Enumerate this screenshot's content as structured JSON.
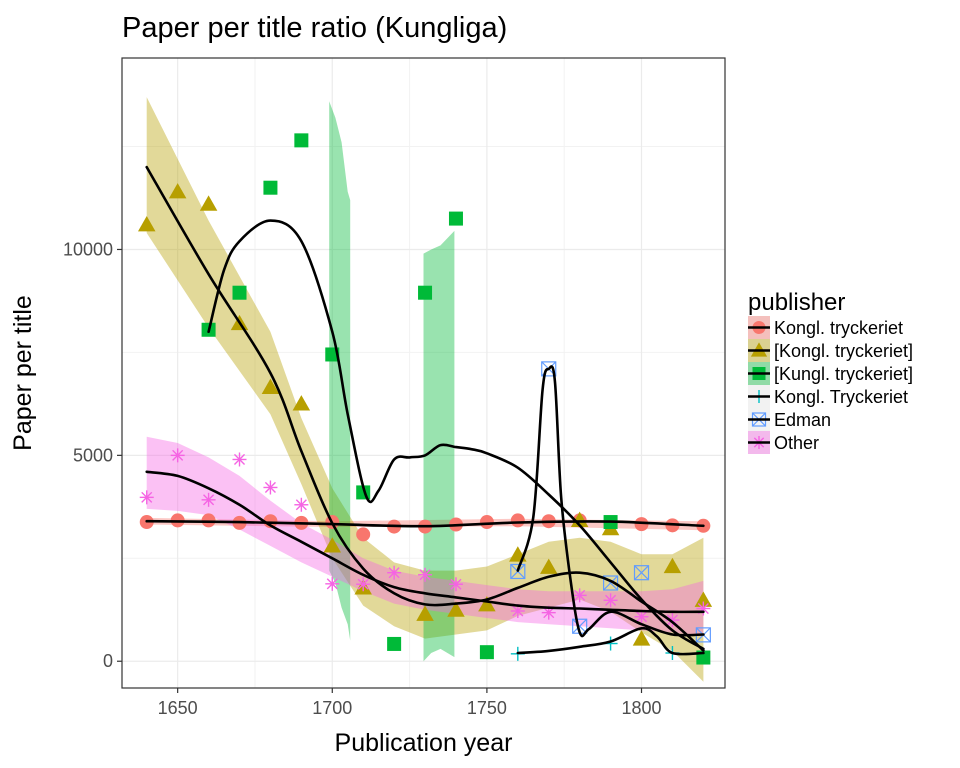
{
  "chart_data": {
    "type": "scatter",
    "title": "Paper per title ratio (Kungliga)",
    "xlabel": "Publication year",
    "ylabel": "Paper per title",
    "xlim": [
      1632,
      1827
    ],
    "ylim": [
      -650,
      14650
    ],
    "x_ticks": [
      1650,
      1700,
      1750,
      1800
    ],
    "x_tick_labels": [
      "1650",
      "1700",
      "1750",
      "1800"
    ],
    "y_ticks": [
      0,
      5000,
      10000
    ],
    "y_tick_labels": [
      "0",
      "5000",
      "10000"
    ],
    "grid": true,
    "legend": {
      "title": "publisher",
      "position": "right"
    },
    "series": [
      {
        "name": "Kongl. tryckeriet",
        "color": "#F8766D",
        "marker": "circle",
        "points": [
          [
            1640,
            3380
          ],
          [
            1650,
            3420
          ],
          [
            1660,
            3420
          ],
          [
            1670,
            3360
          ],
          [
            1680,
            3400
          ],
          [
            1690,
            3360
          ],
          [
            1700,
            3380
          ],
          [
            1710,
            3080
          ],
          [
            1720,
            3270
          ],
          [
            1730,
            3270
          ],
          [
            1740,
            3320
          ],
          [
            1750,
            3380
          ],
          [
            1760,
            3420
          ],
          [
            1770,
            3400
          ],
          [
            1780,
            3420
          ],
          [
            1790,
            3340
          ],
          [
            1800,
            3330
          ],
          [
            1810,
            3300
          ],
          [
            1820,
            3290
          ]
        ],
        "smooth": [
          [
            1640,
            3400
          ],
          [
            1670,
            3380
          ],
          [
            1700,
            3330
          ],
          [
            1730,
            3280
          ],
          [
            1760,
            3370
          ],
          [
            1790,
            3390
          ],
          [
            1820,
            3290
          ]
        ],
        "band": [
          [
            1640,
            3320,
            3480
          ],
          [
            1700,
            3260,
            3400
          ],
          [
            1760,
            3280,
            3460
          ],
          [
            1820,
            3180,
            3400
          ]
        ]
      },
      {
        "name": "[Kongl. tryckeriet]",
        "color": "#B79F00",
        "marker": "triangle",
        "points": [
          [
            1640,
            10600
          ],
          [
            1650,
            11400
          ],
          [
            1660,
            11100
          ],
          [
            1670,
            8200
          ],
          [
            1680,
            6650
          ],
          [
            1690,
            6250
          ],
          [
            1700,
            2800
          ],
          [
            1710,
            1780
          ],
          [
            1730,
            1140
          ],
          [
            1740,
            1240
          ],
          [
            1750,
            1370
          ],
          [
            1760,
            2580
          ],
          [
            1770,
            2280
          ],
          [
            1780,
            3420
          ],
          [
            1790,
            3220
          ],
          [
            1800,
            540
          ],
          [
            1810,
            2300
          ],
          [
            1820,
            1480
          ]
        ],
        "smooth": [
          [
            1640,
            12000
          ],
          [
            1660,
            9400
          ],
          [
            1680,
            7000
          ],
          [
            1690,
            5100
          ],
          [
            1700,
            3350
          ],
          [
            1710,
            2250
          ],
          [
            1720,
            1650
          ],
          [
            1730,
            1380
          ],
          [
            1740,
            1400
          ],
          [
            1750,
            1500
          ],
          [
            1760,
            1780
          ],
          [
            1770,
            2050
          ],
          [
            1780,
            2150
          ],
          [
            1790,
            1950
          ],
          [
            1800,
            1450
          ],
          [
            1810,
            950
          ],
          [
            1820,
            260
          ]
        ],
        "band": [
          [
            1640,
            10400,
            13700
          ],
          [
            1660,
            8100,
            10700
          ],
          [
            1680,
            6000,
            8000
          ],
          [
            1690,
            4300,
            5900
          ],
          [
            1700,
            2500,
            4200
          ],
          [
            1710,
            1350,
            3000
          ],
          [
            1720,
            850,
            2400
          ],
          [
            1730,
            550,
            2200
          ],
          [
            1740,
            650,
            2200
          ],
          [
            1750,
            750,
            2300
          ],
          [
            1760,
            1100,
            2600
          ],
          [
            1770,
            1300,
            2900
          ],
          [
            1780,
            1500,
            3000
          ],
          [
            1790,
            1200,
            2900
          ],
          [
            1800,
            700,
            2600
          ],
          [
            1810,
            250,
            2600
          ],
          [
            1820,
            -500,
            3000
          ]
        ]
      },
      {
        "name": "[Kungl. tryckeriet]",
        "color": "#00BA38",
        "marker": "square",
        "points": [
          [
            1660,
            8050
          ],
          [
            1670,
            8950
          ],
          [
            1680,
            11500
          ],
          [
            1690,
            12650
          ],
          [
            1700,
            7450
          ],
          [
            1710,
            4100
          ],
          [
            1720,
            420
          ],
          [
            1730,
            8950
          ],
          [
            1740,
            10750
          ],
          [
            1750,
            220
          ],
          [
            1790,
            3380
          ],
          [
            1820,
            90
          ]
        ],
        "smooth": [
          [
            1660,
            8000
          ],
          [
            1665,
            9500
          ],
          [
            1670,
            10200
          ],
          [
            1680,
            10700
          ],
          [
            1690,
            10200
          ],
          [
            1700,
            8000
          ],
          [
            1705,
            6000
          ],
          [
            1711,
            4000
          ],
          [
            1715,
            4150
          ],
          [
            1720,
            4900
          ],
          [
            1725,
            4950
          ],
          [
            1730,
            5000
          ],
          [
            1735,
            5250
          ],
          [
            1740,
            5200
          ],
          [
            1745,
            5150
          ],
          [
            1750,
            5050
          ],
          [
            1760,
            4700
          ],
          [
            1770,
            4050
          ],
          [
            1780,
            3300
          ],
          [
            1790,
            2400
          ],
          [
            1800,
            1500
          ],
          [
            1810,
            750
          ],
          [
            1820,
            300
          ]
        ],
        "bands": [
          [
            [
              1699,
              13600,
              2200
            ],
            [
              1701,
              13200,
              1900
            ],
            [
              1703,
              12600,
              1300
            ],
            [
              1705,
              11400,
              900
            ],
            [
              1705.8,
              11200,
              500
            ]
          ],
          [
            [
              1729.5,
              9900,
              0
            ],
            [
              1732,
              10000,
              200
            ],
            [
              1735,
              10100,
              300
            ],
            [
              1739.5,
              10450,
              100
            ]
          ]
        ]
      },
      {
        "name": "Kongl. Tryckeriet",
        "color": "#00BFC4",
        "marker": "plus",
        "points": [
          [
            1760,
            180
          ],
          [
            1790,
            430
          ],
          [
            1810,
            200
          ]
        ],
        "smooth": [
          [
            1760,
            200
          ],
          [
            1770,
            250
          ],
          [
            1780,
            350
          ],
          [
            1790,
            480
          ],
          [
            1800,
            800
          ],
          [
            1805,
            600
          ],
          [
            1810,
            200
          ],
          [
            1820,
            200
          ]
        ]
      },
      {
        "name": "Edman",
        "color": "#619CFF",
        "marker": "boxcross",
        "points": [
          [
            1760,
            2180
          ],
          [
            1770,
            7100
          ],
          [
            1780,
            850
          ],
          [
            1790,
            1900
          ],
          [
            1800,
            2150
          ],
          [
            1820,
            640
          ]
        ],
        "smooth": [
          [
            1760,
            2200
          ],
          [
            1765,
            3500
          ],
          [
            1768,
            6600
          ],
          [
            1770,
            7100
          ],
          [
            1772,
            6800
          ],
          [
            1774,
            4000
          ],
          [
            1777,
            2000
          ],
          [
            1780,
            700
          ],
          [
            1783,
            780
          ],
          [
            1790,
            1200
          ],
          [
            1800,
            900
          ],
          [
            1810,
            650
          ],
          [
            1820,
            650
          ]
        ]
      },
      {
        "name": "Other",
        "color": "#F564E3",
        "marker": "asterisk",
        "points": [
          [
            1640,
            3980
          ],
          [
            1650,
            5000
          ],
          [
            1660,
            3920
          ],
          [
            1670,
            4900
          ],
          [
            1680,
            4220
          ],
          [
            1690,
            3800
          ],
          [
            1700,
            1880
          ],
          [
            1710,
            1870
          ],
          [
            1720,
            2150
          ],
          [
            1730,
            2100
          ],
          [
            1740,
            1870
          ],
          [
            1760,
            1220
          ],
          [
            1770,
            1180
          ],
          [
            1780,
            1600
          ],
          [
            1790,
            1480
          ],
          [
            1800,
            1080
          ],
          [
            1810,
            1000
          ],
          [
            1820,
            1280
          ]
        ],
        "smooth": [
          [
            1640,
            4600
          ],
          [
            1650,
            4500
          ],
          [
            1660,
            4200
          ],
          [
            1670,
            3800
          ],
          [
            1680,
            3300
          ],
          [
            1690,
            2900
          ],
          [
            1700,
            2500
          ],
          [
            1710,
            2100
          ],
          [
            1720,
            1800
          ],
          [
            1730,
            1650
          ],
          [
            1740,
            1550
          ],
          [
            1750,
            1450
          ],
          [
            1760,
            1350
          ],
          [
            1770,
            1300
          ],
          [
            1780,
            1280
          ],
          [
            1790,
            1250
          ],
          [
            1800,
            1220
          ],
          [
            1810,
            1200
          ],
          [
            1820,
            1200
          ]
        ],
        "band": [
          [
            1640,
            3700,
            5450
          ],
          [
            1650,
            3650,
            5300
          ],
          [
            1660,
            3550,
            4950
          ],
          [
            1670,
            3200,
            4500
          ],
          [
            1680,
            2800,
            3900
          ],
          [
            1690,
            2400,
            3350
          ],
          [
            1700,
            2050,
            2950
          ],
          [
            1710,
            1700,
            2500
          ],
          [
            1720,
            1400,
            2200
          ],
          [
            1730,
            1250,
            2050
          ],
          [
            1740,
            1150,
            1950
          ],
          [
            1750,
            1050,
            1850
          ],
          [
            1760,
            950,
            1750
          ],
          [
            1770,
            900,
            1700
          ],
          [
            1780,
            850,
            1700
          ],
          [
            1790,
            800,
            1700
          ],
          [
            1800,
            750,
            1700
          ],
          [
            1810,
            700,
            1750
          ],
          [
            1820,
            600,
            1950
          ]
        ]
      }
    ]
  }
}
